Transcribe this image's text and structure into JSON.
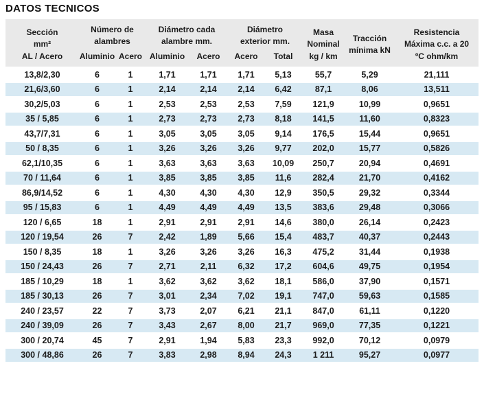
{
  "title": "DATOS TECNICOS",
  "colors": {
    "header_background": "#e9e9e9",
    "stripe_background": "#d7e9f3",
    "text": "#1c1c1c",
    "page_background": "#ffffff"
  },
  "table": {
    "header": {
      "seccion": "Sección\nmm²\nAL / Acero",
      "groups": [
        {
          "label": "Número de\nalambres"
        },
        {
          "label": "Diámetro cada\nalambre mm."
        },
        {
          "label": "Diámetro\nexterior mm."
        }
      ],
      "subcolumns": [
        "Aluminio",
        "Acero",
        "Aluminio",
        "Acero",
        "Acero",
        "Total"
      ],
      "masa": "Masa\nNominal\nkg / km",
      "traccion": "Tracción\nmínima kN",
      "resistencia": "Resistencia\nMáxima c.c. a 20\nºC ohm/km"
    },
    "column_keys": [
      "seccion",
      "alambres-aluminio",
      "alambres-acero",
      "diametro-alambre-aluminio",
      "diametro-alambre-acero",
      "diametro-exterior-acero",
      "diametro-exterior-total",
      "masa-nominal",
      "traccion-minima",
      "resistencia-maxima"
    ],
    "rows": [
      [
        "13,8/2,30",
        "6",
        "1",
        "1,71",
        "1,71",
        "1,71",
        "5,13",
        "55,7",
        "5,29",
        "21,111"
      ],
      [
        "21,6/3,60",
        "6",
        "1",
        "2,14",
        "2,14",
        "2,14",
        "6,42",
        "87,1",
        "8,06",
        "13,511"
      ],
      [
        "30,2/5,03",
        "6",
        "1",
        "2,53",
        "2,53",
        "2,53",
        "7,59",
        "121,9",
        "10,99",
        "0,9651"
      ],
      [
        "35 / 5,85",
        "6",
        "1",
        "2,73",
        "2,73",
        "2,73",
        "8,18",
        "141,5",
        "11,60",
        "0,8323"
      ],
      [
        "43,7/7,31",
        "6",
        "1",
        "3,05",
        "3,05",
        "3,05",
        "9,14",
        "176,5",
        "15,44",
        "0,9651"
      ],
      [
        "50 / 8,35",
        "6",
        "1",
        "3,26",
        "3,26",
        "3,26",
        "9,77",
        "202,0",
        "15,77",
        "0,5826"
      ],
      [
        "62,1/10,35",
        "6",
        "1",
        "3,63",
        "3,63",
        "3,63",
        "10,09",
        "250,7",
        "20,94",
        "0,4691"
      ],
      [
        "70 / 11,64",
        "6",
        "1",
        "3,85",
        "3,85",
        "3,85",
        "11,6",
        "282,4",
        "21,70",
        "0,4162"
      ],
      [
        "86,9/14,52",
        "6",
        "1",
        "4,30",
        "4,30",
        "4,30",
        "12,9",
        "350,5",
        "29,32",
        "0,3344"
      ],
      [
        "95 / 15,83",
        "6",
        "1",
        "4,49",
        "4,49",
        "4,49",
        "13,5",
        "383,6",
        "29,48",
        "0,3066"
      ],
      [
        "120 / 6,65",
        "18",
        "1",
        "2,91",
        "2,91",
        "2,91",
        "14,6",
        "380,0",
        "26,14",
        "0,2423"
      ],
      [
        "120 / 19,54",
        "26",
        "7",
        "2,42",
        "1,89",
        "5,66",
        "15,4",
        "483,7",
        "40,37",
        "0,2443"
      ],
      [
        "150 / 8,35",
        "18",
        "1",
        "3,26",
        "3,26",
        "3,26",
        "16,3",
        "475,2",
        "31,44",
        "0,1938"
      ],
      [
        "150 / 24,43",
        "26",
        "7",
        "2,71",
        "2,11",
        "6,32",
        "17,2",
        "604,6",
        "49,75",
        "0,1954"
      ],
      [
        "185 / 10,29",
        "18",
        "1",
        "3,62",
        "3,62",
        "3,62",
        "18,1",
        "586,0",
        "37,90",
        "0,1571"
      ],
      [
        "185 / 30,13",
        "26",
        "7",
        "3,01",
        "2,34",
        "7,02",
        "19,1",
        "747,0",
        "59,63",
        "0,1585"
      ],
      [
        "240 / 23,57",
        "22",
        "7",
        "3,73",
        "2,07",
        "6,21",
        "21,1",
        "847,0",
        "61,11",
        "0,1220"
      ],
      [
        "240 / 39,09",
        "26",
        "7",
        "3,43",
        "2,67",
        "8,00",
        "21,7",
        "969,0",
        "77,35",
        "0,1221"
      ],
      [
        "300 / 20,74",
        "45",
        "7",
        "2,91",
        "1,94",
        "5,83",
        "23,3",
        "992,0",
        "70,12",
        "0,0979"
      ],
      [
        "300 / 48,86",
        "26",
        "7",
        "3,83",
        "2,98",
        "8,94",
        "24,3",
        "1 211",
        "95,27",
        "0,0977"
      ]
    ]
  }
}
